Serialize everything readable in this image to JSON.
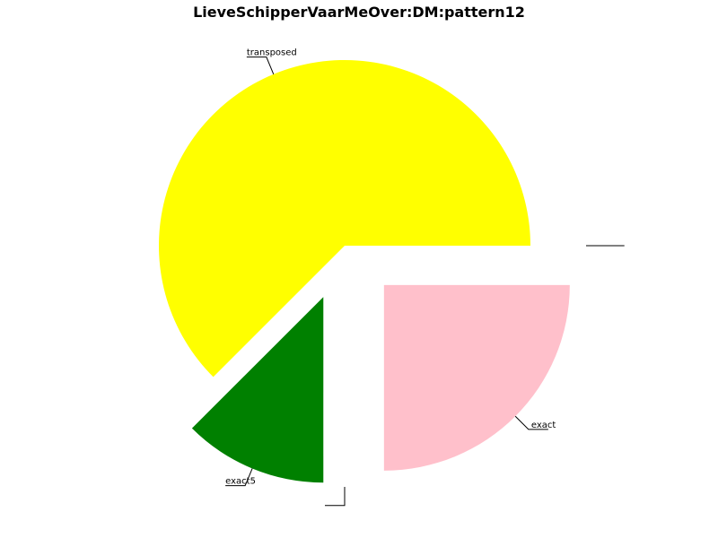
{
  "chart_data": {
    "type": "pie",
    "title": "LieveSchipperVaarMeOver:DM:pattern12",
    "start_angle_deg": 0,
    "direction": "counterclockwise",
    "exploded": true,
    "slices": [
      {
        "label": "transposed",
        "value": 62.5,
        "color": "#ffff00"
      },
      {
        "label": "exact5",
        "value": 12.5,
        "color": "#008000"
      },
      {
        "label": "",
        "value": 0,
        "color": "#ffffff"
      },
      {
        "label": "exact",
        "value": 25,
        "color": "#ffc0cb"
      },
      {
        "label": "",
        "value": 0,
        "color": "#ffffff"
      }
    ]
  }
}
